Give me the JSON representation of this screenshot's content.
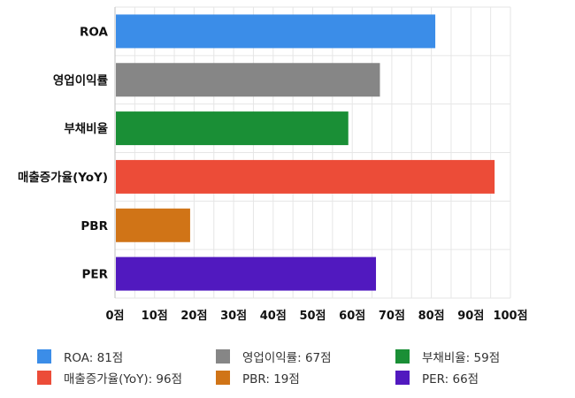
{
  "chart_data": {
    "type": "bar",
    "orientation": "horizontal",
    "categories": [
      "ROA",
      "영업이익률",
      "부채비율",
      "매출증가율(YoY)",
      "PBR",
      "PER"
    ],
    "values": [
      81,
      67,
      59,
      96,
      19,
      66
    ],
    "colors": [
      "#3b8de8",
      "#868686",
      "#1a8f36",
      "#ec4c38",
      "#d07417",
      "#5119bf"
    ],
    "xlim": [
      0,
      100
    ],
    "xticks": [
      0,
      10,
      20,
      30,
      40,
      50,
      60,
      70,
      80,
      90,
      100
    ],
    "tick_suffix": "점",
    "grid": true,
    "legend": {
      "placement": "bottom",
      "labels": [
        "ROA: 81점",
        "영업이익률: 67점",
        "부채비율: 59점",
        "매출증가율(YoY): 96점",
        "PBR: 19점",
        "PER: 66점"
      ]
    }
  }
}
